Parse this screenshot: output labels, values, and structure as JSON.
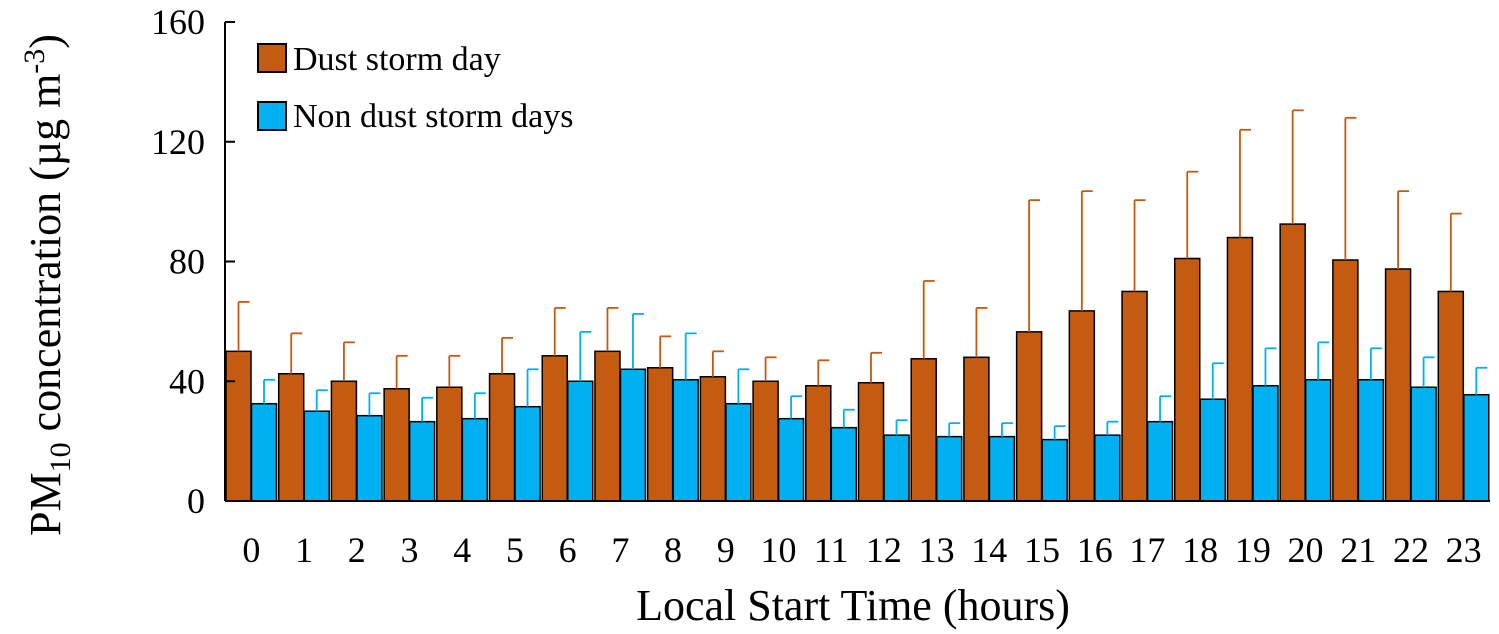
{
  "chart_data": {
    "type": "bar",
    "title": "",
    "xlabel": "Local Start Time (hours)",
    "ylabel": {
      "prefix": "PM",
      "subscript": "10",
      "middle": " concentration (µg m",
      "superscript": "-3",
      "suffix": ")"
    },
    "ylim": [
      0,
      160
    ],
    "yticks": [
      "0",
      "40",
      "80",
      "120",
      "160"
    ],
    "ytick_values": [
      0,
      40,
      80,
      120,
      160
    ],
    "categories": [
      "0",
      "1",
      "2",
      "3",
      "4",
      "5",
      "6",
      "7",
      "8",
      "9",
      "10",
      "11",
      "12",
      "13",
      "14",
      "15",
      "16",
      "17",
      "18",
      "19",
      "20",
      "21",
      "22",
      "23"
    ],
    "grid": false,
    "legend_position": "top-left",
    "series": [
      {
        "name": "Dust storm day",
        "color": "#C55A11",
        "values": [
          50,
          42.5,
          40,
          37.5,
          38,
          42.5,
          48.5,
          50,
          44.5,
          41.5,
          40,
          38.5,
          39.5,
          47.5,
          48,
          56.5,
          63.5,
          70,
          81,
          88,
          92.5,
          80.5,
          77.5,
          70
        ],
        "error_plus": [
          16.5,
          13.5,
          13,
          11,
          10.5,
          12,
          16,
          14.5,
          10.5,
          8.5,
          8,
          8.5,
          10,
          26,
          16.5,
          44,
          40,
          30.5,
          29,
          36,
          38,
          47.5,
          26,
          26
        ]
      },
      {
        "name": "Non dust storm days",
        "color": "#00B0F0",
        "values": [
          32.5,
          30,
          28.5,
          26.5,
          27.5,
          31.5,
          40,
          44,
          40.5,
          32.5,
          27.5,
          24.5,
          22,
          21.5,
          21.5,
          20.5,
          22,
          26.5,
          34,
          38.5,
          40.5,
          40.5,
          38,
          35.5
        ],
        "error_plus": [
          8,
          7,
          7.5,
          8,
          8.5,
          12.5,
          16.5,
          18.5,
          15.5,
          11.5,
          7.5,
          6,
          5,
          4.5,
          4.5,
          4.5,
          4.5,
          8.5,
          12,
          12.5,
          12.5,
          10.5,
          10,
          9
        ]
      }
    ]
  }
}
